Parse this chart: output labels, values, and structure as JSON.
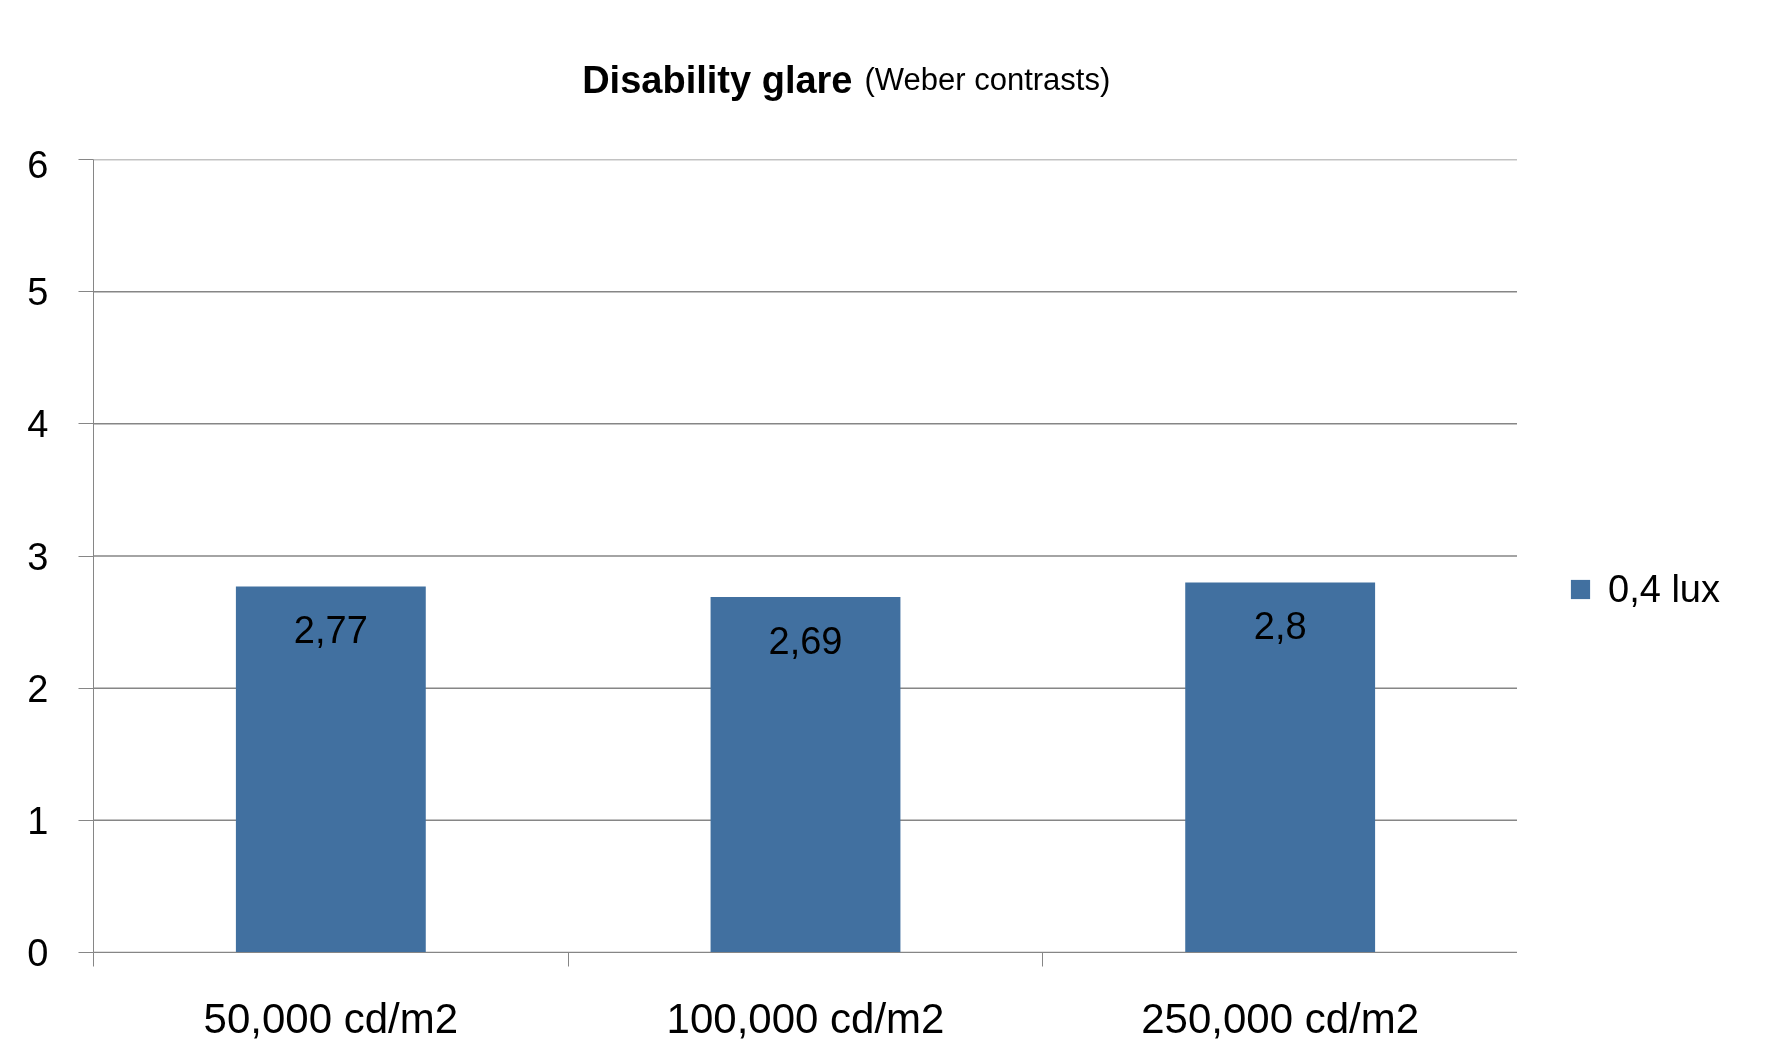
{
  "chart_data": {
    "type": "bar",
    "title": "Disability glare",
    "subtitle": "(Weber contrasts)",
    "categories": [
      "50,000 cd/m2",
      "100,000 cd/m2",
      "250,000 cd/m2"
    ],
    "series": [
      {
        "name": "0,4 lux",
        "color": "#4170a0",
        "values": [
          2.77,
          2.69,
          2.8
        ],
        "value_labels": [
          "2,77",
          "2,69",
          "2,8"
        ]
      }
    ],
    "ylim": [
      0,
      6
    ],
    "yticks": [
      0,
      1,
      2,
      3,
      4,
      5,
      6
    ],
    "grid": "y",
    "legend": "right"
  }
}
